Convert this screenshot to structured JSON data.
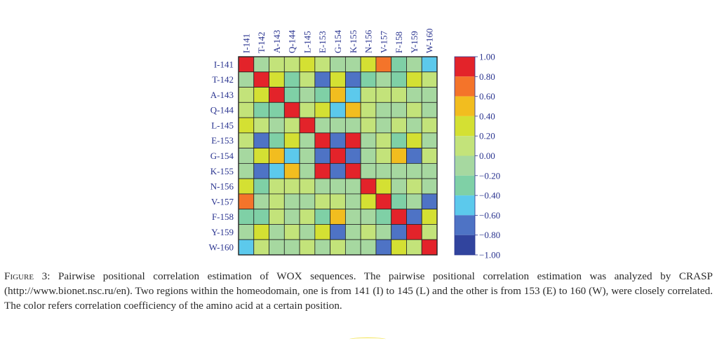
{
  "chart_data": {
    "type": "heatmap",
    "row_labels": [
      "I-141",
      "T-142",
      "A-143",
      "Q-144",
      "L-145",
      "E-153",
      "G-154",
      "K-155",
      "N-156",
      "V-157",
      "F-158",
      "Y-159",
      "W-160"
    ],
    "col_labels": [
      "I-141",
      "T-142",
      "A-143",
      "Q-144",
      "L-145",
      "E-153",
      "G-154",
      "K-155",
      "N-156",
      "V-157",
      "F-158",
      "Y-159",
      "W-160"
    ],
    "values": [
      [
        1.0,
        -0.1,
        0.1,
        0.1,
        0.3,
        0.1,
        -0.1,
        -0.1,
        0.3,
        0.7,
        -0.3,
        -0.1,
        -0.5
      ],
      [
        -0.1,
        1.0,
        0.3,
        -0.3,
        0.1,
        -0.7,
        0.3,
        -0.7,
        -0.3,
        -0.1,
        -0.3,
        0.3,
        0.1
      ],
      [
        0.1,
        0.3,
        1.0,
        -0.3,
        -0.1,
        -0.3,
        0.5,
        -0.5,
        0.1,
        0.1,
        0.1,
        -0.1,
        -0.1
      ],
      [
        0.1,
        -0.3,
        -0.3,
        1.0,
        0.1,
        0.3,
        -0.5,
        0.5,
        0.1,
        -0.1,
        -0.1,
        0.1,
        -0.1
      ],
      [
        0.3,
        0.1,
        -0.1,
        0.1,
        1.0,
        -0.1,
        -0.1,
        -0.1,
        0.1,
        -0.1,
        0.1,
        -0.1,
        0.1
      ],
      [
        0.1,
        -0.7,
        -0.3,
        0.3,
        -0.1,
        1.0,
        -0.7,
        1.0,
        -0.1,
        0.1,
        -0.3,
        0.3,
        -0.1
      ],
      [
        -0.1,
        0.3,
        0.5,
        -0.5,
        -0.1,
        -0.7,
        1.0,
        -0.7,
        -0.1,
        0.1,
        0.5,
        -0.7,
        0.1
      ],
      [
        -0.1,
        -0.7,
        -0.5,
        0.5,
        -0.1,
        1.0,
        -0.7,
        1.0,
        -0.1,
        -0.1,
        -0.1,
        -0.1,
        -0.1
      ],
      [
        0.3,
        -0.3,
        0.1,
        0.1,
        0.1,
        -0.1,
        -0.1,
        -0.1,
        1.0,
        0.3,
        -0.1,
        0.1,
        -0.1
      ],
      [
        0.7,
        -0.1,
        0.1,
        -0.1,
        -0.1,
        0.1,
        0.1,
        -0.1,
        0.3,
        1.0,
        -0.3,
        -0.1,
        -0.7
      ],
      [
        -0.3,
        -0.3,
        0.1,
        -0.1,
        0.1,
        -0.3,
        0.5,
        -0.1,
        -0.1,
        -0.3,
        1.0,
        -0.7,
        0.3
      ],
      [
        -0.1,
        0.3,
        -0.1,
        0.1,
        -0.1,
        0.3,
        -0.7,
        -0.1,
        0.1,
        -0.1,
        -0.7,
        1.0,
        0.1
      ],
      [
        -0.5,
        0.1,
        -0.1,
        -0.1,
        0.1,
        -0.1,
        0.1,
        -0.1,
        -0.1,
        -0.7,
        0.3,
        0.1,
        1.0
      ]
    ],
    "colorbar": {
      "ticks": [
        "1.00",
        "0.80",
        "0.60",
        "0.40",
        "0.20",
        "0.00",
        "−0.20",
        "−0.40",
        "−0.60",
        "−0.80",
        "−1.00"
      ],
      "range": [
        -1.0,
        1.0
      ],
      "colors": [
        "#e3232a",
        "#f4742a",
        "#f2bd1f",
        "#d4e033",
        "#c3e37a",
        "#a6d8a0",
        "#7fd0a6",
        "#5cc9ec",
        "#4e73c5",
        "#31449e"
      ]
    },
    "grid": true
  },
  "caption": {
    "label": "Figure 3:",
    "text": " Pairwise positional correlation estimation of WOX sequences. The pairwise positional correlation estimation was analyzed by CRASP (http://www.bionet.nsc.ru/en). Two regions within the homeodomain, one is from 141 (I) to 145 (L) and the other is from 153 (E) to 160 (W), were closely correlated. The color refers correlation coefficiency of the amino acid at a certain position."
  }
}
